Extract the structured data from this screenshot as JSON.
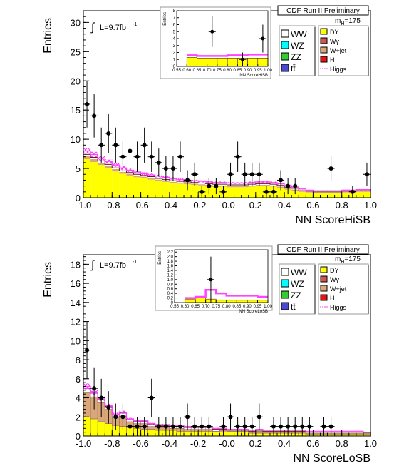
{
  "chart_data": [
    {
      "type": "bar",
      "header": "CDF Run II Preliminary",
      "luminosity": "L=9.7fb",
      "lumi_exponent": "-1",
      "mass_label": "m",
      "mass_sub": "H",
      "mass_value": "=175",
      "xlabel": "NN ScoreHiSB",
      "ylabel": "Entries",
      "xlim": [
        -1.0,
        1.0
      ],
      "ylim": [
        0,
        32
      ],
      "xticks": [
        "-1.0",
        "-0.8",
        "-0.6",
        "-0.4",
        "-0.2",
        "-0.0",
        "0.2",
        "0.4",
        "0.6",
        "0.8",
        "1.0"
      ],
      "yticks": [
        "0",
        "5",
        "10",
        "15",
        "20",
        "25",
        "30"
      ],
      "legend_left": [
        "WW",
        "WZ",
        "ZZ",
        "tt̄"
      ],
      "legend_right": [
        "DY",
        "Wγ",
        "W+jet",
        "H",
        "Higgs"
      ],
      "series": [
        {
          "name": "DY",
          "color": "#ffff00",
          "values": [
            6.6,
            6.1,
            5.6,
            5.0,
            4.5,
            4.1,
            3.8,
            3.5,
            3.3,
            3.1,
            2.9,
            2.7,
            2.5,
            2.4,
            2.3,
            2.2,
            2.1,
            2.0,
            1.9,
            1.9,
            1.8,
            1.8,
            1.8,
            1.9,
            2.0,
            2.0,
            1.9,
            1.7,
            1.4,
            1.2,
            1.0,
            0.9,
            0.8,
            0.8,
            0.8,
            0.8,
            0.9,
            0.9,
            1.0,
            1.0
          ]
        },
        {
          "name": "W+jet",
          "color": "#d9a77a",
          "values": [
            0.5,
            0.5,
            0.4,
            0.4,
            0.4,
            0.3,
            0.3,
            0.3,
            0.3,
            0.3,
            0.2,
            0.2,
            0.2,
            0.2,
            0.2,
            0.2,
            0.2,
            0.2,
            0.2,
            0.2,
            0.2,
            0.2,
            0.2,
            0.2,
            0.2,
            0.2,
            0.2,
            0.2,
            0.2,
            0.2,
            0.1,
            0.1,
            0.1,
            0.1,
            0.1,
            0.1,
            0.1,
            0.1,
            0.1,
            0.1
          ]
        },
        {
          "name": "WW",
          "color": "#ffffff",
          "values": [
            0.3,
            0.3,
            0.3,
            0.3,
            0.2,
            0.2,
            0.2,
            0.2,
            0.2,
            0.2,
            0.2,
            0.2,
            0.2,
            0.2,
            0.2,
            0.2,
            0.2,
            0.2,
            0.2,
            0.2,
            0.2,
            0.2,
            0.2,
            0.2,
            0.2,
            0.2,
            0.2,
            0.2,
            0.2,
            0.2,
            0.1,
            0.1,
            0.1,
            0.1,
            0.1,
            0.1,
            0.1,
            0.1,
            0.1,
            0.1
          ]
        }
      ],
      "higgs_band": [
        8.0,
        7.4,
        6.8,
        6.2,
        5.6,
        5.1,
        4.7,
        4.4,
        4.1,
        3.9,
        3.7,
        3.5,
        3.3,
        3.1,
        3.0,
        2.9,
        2.8,
        2.7,
        2.6,
        2.6,
        2.5,
        2.5,
        2.5,
        2.6,
        2.7,
        2.7,
        2.6,
        2.4,
        2.1,
        1.8,
        1.5,
        1.3,
        1.2,
        1.2,
        1.2,
        1.2,
        1.3,
        1.3,
        1.4,
        1.4
      ],
      "data_points": {
        "x": [
          -0.975,
          -0.925,
          -0.875,
          -0.825,
          -0.775,
          -0.725,
          -0.675,
          -0.625,
          -0.575,
          -0.525,
          -0.475,
          -0.425,
          -0.375,
          -0.325,
          -0.275,
          -0.225,
          -0.175,
          -0.125,
          -0.075,
          -0.025,
          0.025,
          0.075,
          0.125,
          0.175,
          0.225,
          0.275,
          0.325,
          0.375,
          0.425,
          0.475,
          0.725,
          0.875,
          0.975
        ],
        "y": [
          16,
          14,
          9,
          11,
          9,
          7,
          8,
          7,
          9,
          7,
          6,
          5,
          5,
          7,
          3,
          4,
          1,
          2,
          2,
          1,
          4,
          7,
          4,
          4,
          4,
          1,
          1,
          3,
          2,
          2,
          5,
          1,
          4
        ],
        "yerr": [
          4,
          3.7,
          3,
          3.3,
          3,
          2.6,
          2.8,
          2.6,
          3,
          2.6,
          2.4,
          2.2,
          2.2,
          2.6,
          1.7,
          2,
          1,
          1.4,
          1.4,
          1,
          2,
          2.6,
          2,
          2,
          2,
          1,
          1,
          1.7,
          1.4,
          1.4,
          2.2,
          1,
          2
        ]
      },
      "inset": {
        "ylabel": "Entries",
        "xlabel": "NN ScoreHiSB",
        "xticks": [
          "0.55",
          "0.60",
          "0.65",
          "0.70",
          "0.75",
          "0.80",
          "0.85",
          "0.90",
          "0.95",
          "1.00"
        ],
        "yticks": [
          "0",
          "1",
          "2",
          "3",
          "4",
          "5",
          "6",
          "7",
          "8"
        ],
        "xlim": [
          0.55,
          1.0
        ],
        "ylim": [
          0,
          8
        ],
        "bands": [
          0.6,
          0.65,
          0.7,
          0.75,
          0.8,
          0.85,
          0.9,
          0.95,
          1.0
        ],
        "bg_values": [
          1.3,
          1.2,
          1.2,
          1.2,
          1.2,
          1.2,
          1.2,
          1.2
        ],
        "higgs_values": [
          1.6,
          1.5,
          1.5,
          1.5,
          1.6,
          1.6,
          1.7,
          1.7
        ],
        "points_x": [
          0.725,
          0.875,
          0.975
        ],
        "points_y": [
          5,
          1,
          4
        ],
        "points_err": [
          2.2,
          1,
          2
        ]
      }
    },
    {
      "type": "bar",
      "header": "CDF Run II Preliminary",
      "luminosity": "L=9.7fb",
      "lumi_exponent": "-1",
      "mass_label": "m",
      "mass_sub": "H",
      "mass_value": "=175",
      "xlabel": "NN ScoreLoSB",
      "ylabel": "Entries",
      "xlim": [
        -1.0,
        1.0
      ],
      "ylim": [
        0,
        19
      ],
      "xticks": [
        "-1.0",
        "-0.8",
        "-0.6",
        "-0.4",
        "-0.2",
        "-0.0",
        "0.2",
        "0.4",
        "0.6",
        "0.8",
        "1.0"
      ],
      "yticks": [
        "0",
        "2",
        "4",
        "6",
        "8",
        "10",
        "12",
        "14",
        "16",
        "18"
      ],
      "legend_left": [
        "WW",
        "WZ",
        "ZZ",
        "tt̄"
      ],
      "legend_right": [
        "DY",
        "Wγ",
        "W+jet",
        "H",
        "Higgs"
      ],
      "series": [
        {
          "name": "DY",
          "color": "#ffff00",
          "values": [
            2.0,
            1.8,
            1.5,
            1.3,
            1.1,
            1.0,
            0.9,
            0.8,
            0.7,
            0.7,
            0.6,
            0.6,
            0.6,
            0.5,
            0.5,
            0.5,
            0.5,
            0.5,
            0.4,
            0.4,
            0.4,
            0.4,
            0.4,
            0.3,
            0.3,
            0.3,
            0.3,
            0.3,
            0.3,
            0.3,
            0.3,
            0.2,
            0.2,
            0.2,
            0.2,
            0.2,
            0.2,
            0.2,
            0.2,
            0.2
          ]
        },
        {
          "name": "W+jet",
          "color": "#d9a77a",
          "values": [
            2.6,
            2.3,
            2.0,
            1.5,
            0.8,
            1.1,
            0.6,
            0.5,
            0.6,
            0.3,
            0.3,
            0.3,
            0.2,
            0.3,
            0.2,
            0.2,
            0.2,
            0.2,
            0.1,
            0.2,
            0.1,
            0.1,
            0.1,
            0.1,
            0.2,
            0.1,
            0.1,
            0.1,
            0.1,
            0.1,
            0.1,
            0.1,
            0.1,
            0.1,
            0.1,
            0.1,
            0.1,
            0.1,
            0.1,
            0.0
          ]
        },
        {
          "name": "WW",
          "color": "#ffffff",
          "values": [
            0.4,
            0.4,
            0.3,
            0.3,
            0.3,
            0.3,
            0.2,
            0.2,
            0.2,
            0.2,
            0.2,
            0.2,
            0.2,
            0.2,
            0.2,
            0.2,
            0.2,
            0.2,
            0.2,
            0.1,
            0.1,
            0.1,
            0.1,
            0.1,
            0.1,
            0.1,
            0.1,
            0.1,
            0.1,
            0.1,
            0.1,
            0.1,
            0.1,
            0.1,
            0.1,
            0.1,
            0.1,
            0.1,
            0.1,
            0.1
          ]
        }
      ],
      "higgs_band": [
        5.2,
        4.6,
        3.9,
        3.2,
        2.3,
        2.5,
        1.8,
        1.6,
        1.6,
        1.3,
        1.2,
        1.2,
        1.1,
        1.1,
        1.0,
        1.0,
        1.0,
        1.0,
        0.8,
        0.8,
        0.7,
        0.7,
        0.7,
        0.6,
        0.7,
        0.6,
        0.6,
        0.6,
        0.6,
        0.6,
        0.6,
        0.5,
        0.5,
        0.5,
        0.5,
        0.5,
        0.5,
        0.5,
        0.5,
        0.4
      ],
      "data_points": {
        "x": [
          -0.975,
          -0.925,
          -0.875,
          -0.825,
          -0.775,
          -0.725,
          -0.675,
          -0.625,
          -0.575,
          -0.525,
          -0.475,
          -0.425,
          -0.375,
          -0.325,
          -0.275,
          -0.225,
          -0.175,
          -0.125,
          -0.025,
          0.025,
          0.075,
          0.125,
          0.175,
          0.225,
          0.325,
          0.375,
          0.425,
          0.475,
          0.525,
          0.575,
          0.675,
          0.725
        ],
        "y": [
          9,
          5,
          4,
          3,
          2,
          2,
          1,
          1,
          1,
          4,
          1,
          1,
          1,
          1,
          2,
          1,
          1,
          1,
          1,
          2,
          1,
          1,
          1,
          2,
          1,
          1,
          1,
          1,
          1,
          1,
          1,
          1
        ],
        "yerr": [
          3,
          2.2,
          2,
          1.7,
          1.4,
          1.4,
          1,
          1,
          1,
          2,
          1,
          1,
          1,
          1,
          1.4,
          1,
          1,
          1,
          1,
          1.4,
          1,
          1,
          1,
          1.4,
          1,
          1,
          1,
          1,
          1,
          1,
          1,
          1
        ]
      },
      "inset": {
        "ylabel": "Entries",
        "xlabel": "NN ScoreLoSB",
        "xticks": [
          "0.55",
          "0.60",
          "0.65",
          "0.70",
          "0.75",
          "0.80",
          "0.85",
          "0.90",
          "0.95",
          "1.00"
        ],
        "yticks": [
          "0",
          "0.2",
          "0.4",
          "0.6",
          "0.8",
          "1.0",
          "1.2",
          "1.4",
          "1.6",
          "1.8",
          "2.0",
          "2.2"
        ],
        "xlim": [
          0.55,
          1.0
        ],
        "ylim": [
          0,
          2.3
        ],
        "bands": [
          0.6,
          0.65,
          0.7,
          0.75,
          0.8,
          0.85,
          0.9,
          0.95,
          1.0
        ],
        "bg_values": [
          0.15,
          0.2,
          0.15,
          0.1,
          0.1,
          0.1,
          0.1,
          0.1
        ],
        "higgs_values": [
          0.2,
          0.25,
          0.55,
          0.4,
          0.3,
          0.3,
          0.3,
          0.25
        ],
        "points_x": [
          0.725
        ],
        "points_y": [
          1
        ],
        "points_err": [
          1
        ]
      }
    }
  ]
}
